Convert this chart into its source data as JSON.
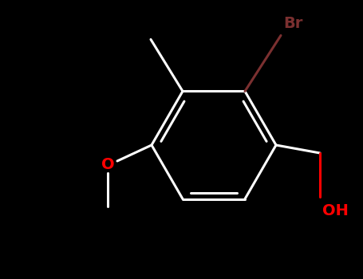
{
  "background_color": "#000000",
  "bond_color": "#ffffff",
  "br_color": "#7B3030",
  "o_color": "#ff0000",
  "oh_color": "#ff0000",
  "br_text": "Br",
  "o_text": "O",
  "oh_text": "OH",
  "figsize": [
    4.55,
    3.5
  ],
  "dpi": 100,
  "bond_lw": 2.2,
  "inner_lw": 2.2,
  "br_fontsize": 14,
  "oh_fontsize": 14,
  "o_fontsize": 14
}
